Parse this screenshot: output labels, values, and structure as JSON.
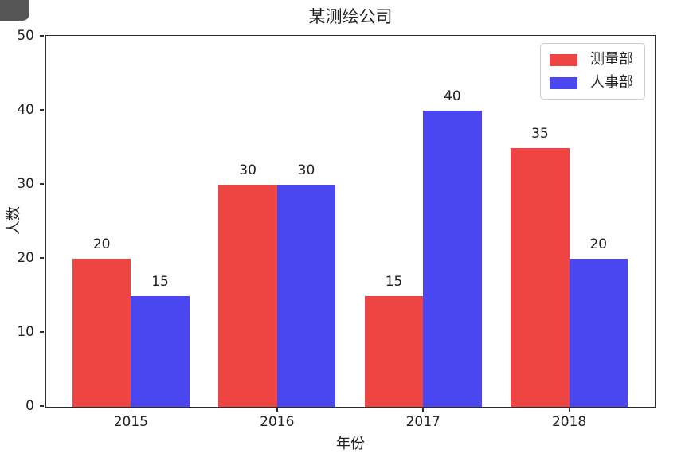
{
  "chart_data": {
    "type": "bar",
    "title": "某测绘公司",
    "xlabel": "年份",
    "ylabel": "人数",
    "categories": [
      "2015",
      "2016",
      "2017",
      "2018"
    ],
    "series": [
      {
        "name": "测量部",
        "color": "#ee4543",
        "values": [
          20,
          30,
          15,
          35
        ]
      },
      {
        "name": "人事部",
        "color": "#4b47f0",
        "values": [
          15,
          30,
          40,
          20
        ]
      }
    ],
    "ylim": [
      0,
      50
    ],
    "yticks": [
      0,
      10,
      20,
      30,
      40,
      50
    ],
    "bar_value_labels": true,
    "grid": false,
    "legend": {
      "position": "upper-right",
      "entries": [
        "测量部",
        "人事部"
      ]
    }
  },
  "style": {
    "background": "#ffffff",
    "axis_color": "#2b2b2b",
    "text_color": "#1f1f1f",
    "legend_border_color": "#cccccc",
    "overlay_fragment_color": "#565656"
  }
}
